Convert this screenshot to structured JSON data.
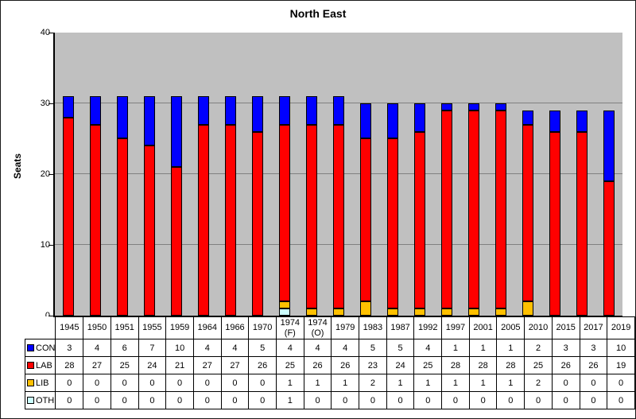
{
  "window": {
    "background": "#FFFFFF",
    "border_color": "#1A1A1A"
  },
  "chart_data": {
    "type": "bar",
    "stacked": true,
    "title": "North East",
    "xlabel": "",
    "ylabel": "Seats",
    "ylim": [
      0,
      40
    ],
    "yticks": [
      0,
      10,
      20,
      30,
      40
    ],
    "gridlines": [
      10,
      20,
      30
    ],
    "plot_bg": "#C0C0C0",
    "grid_color": "#808080",
    "axis_color": "#000000",
    "legend_position": "table-left-column",
    "stack_order_bottom_to_top": [
      "OTH",
      "LIB",
      "LAB",
      "CON"
    ],
    "categories": [
      "1945",
      "1950",
      "1951",
      "1955",
      "1959",
      "1964",
      "1966",
      "1970",
      "1974 (F)",
      "1974 (O)",
      "1979",
      "1983",
      "1987",
      "1992",
      "1997",
      "2001",
      "2005",
      "2010",
      "2015",
      "2017",
      "2019"
    ],
    "series": [
      {
        "name": "CON",
        "color": "#0000FF",
        "values": [
          3,
          4,
          6,
          7,
          10,
          4,
          4,
          5,
          4,
          4,
          4,
          5,
          5,
          4,
          1,
          1,
          1,
          2,
          3,
          3,
          10
        ]
      },
      {
        "name": "LAB",
        "color": "#FF0000",
        "values": [
          28,
          27,
          25,
          24,
          21,
          27,
          27,
          26,
          25,
          26,
          26,
          23,
          24,
          25,
          28,
          28,
          28,
          25,
          26,
          26,
          19
        ]
      },
      {
        "name": "LIB",
        "color": "#FFC000",
        "values": [
          0,
          0,
          0,
          0,
          0,
          0,
          0,
          0,
          1,
          1,
          1,
          2,
          1,
          1,
          1,
          1,
          1,
          2,
          0,
          0,
          0
        ]
      },
      {
        "name": "OTH",
        "color": "#CCFFFF",
        "values": [
          0,
          0,
          0,
          0,
          0,
          0,
          0,
          0,
          1,
          0,
          0,
          0,
          0,
          0,
          0,
          0,
          0,
          0,
          0,
          0,
          0
        ]
      }
    ]
  }
}
